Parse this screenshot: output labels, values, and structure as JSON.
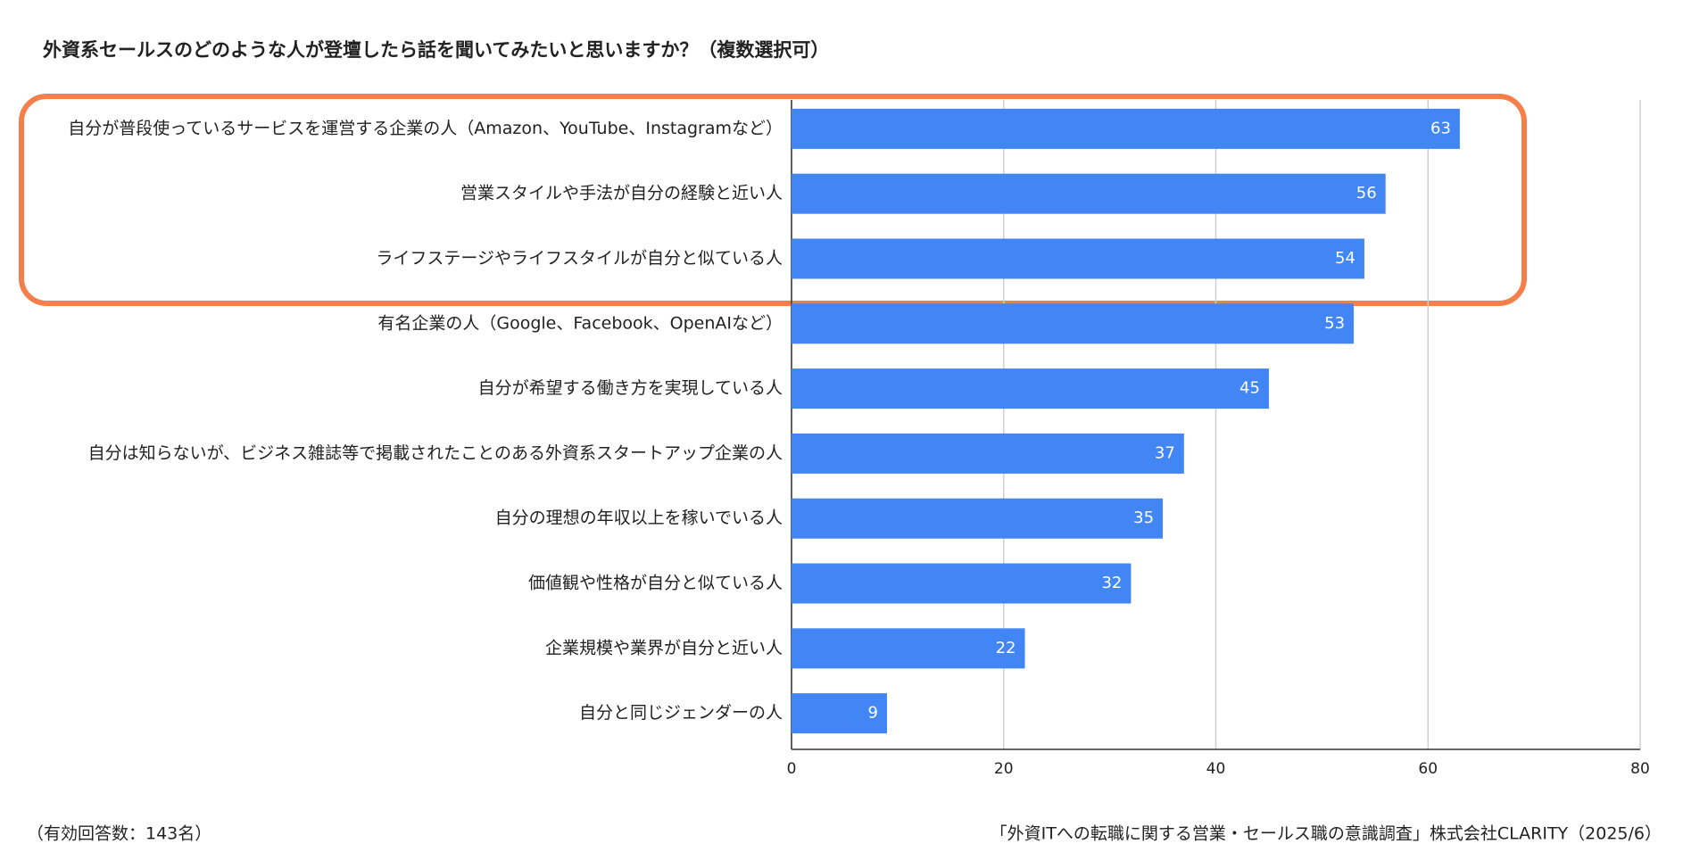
{
  "chart_data": {
    "type": "bar",
    "orientation": "horizontal",
    "title": "外資系セールスのどのような人が登壇したら話を聞いてみたいと思いますか？（複数選択可）",
    "categories": [
      "自分が普段使っているサービスを運営する企業の人（Amazon、YouTube、Instagramなど）",
      "営業スタイルや手法が自分の経験と近い人",
      "ライフステージやライフスタイルが自分と似ている人",
      "有名企業の人（Google、Facebook、OpenAIなど）",
      "自分が希望する働き方を実現している人",
      "自分は知らないが、ビジネス雑誌等で掲載されたことのある外資系スタートアップ企業の人",
      "自分の理想の年収以上を稼いでいる人",
      "価値観や性格が自分と似ている人",
      "企業規模や業界が自分と近い人",
      "自分と同じジェンダーの人"
    ],
    "values": [
      63,
      56,
      54,
      53,
      45,
      37,
      35,
      32,
      22,
      9
    ],
    "color": "#4285f4",
    "xlim": [
      0,
      80
    ],
    "xticks": [
      0,
      20,
      40,
      60,
      80
    ],
    "grid": true,
    "note": "（有効回答数：143名）",
    "source": "「外資ITへの転職に関する営業・セールス職の意識調査」株式会社CLARITY（2025/6）"
  }
}
